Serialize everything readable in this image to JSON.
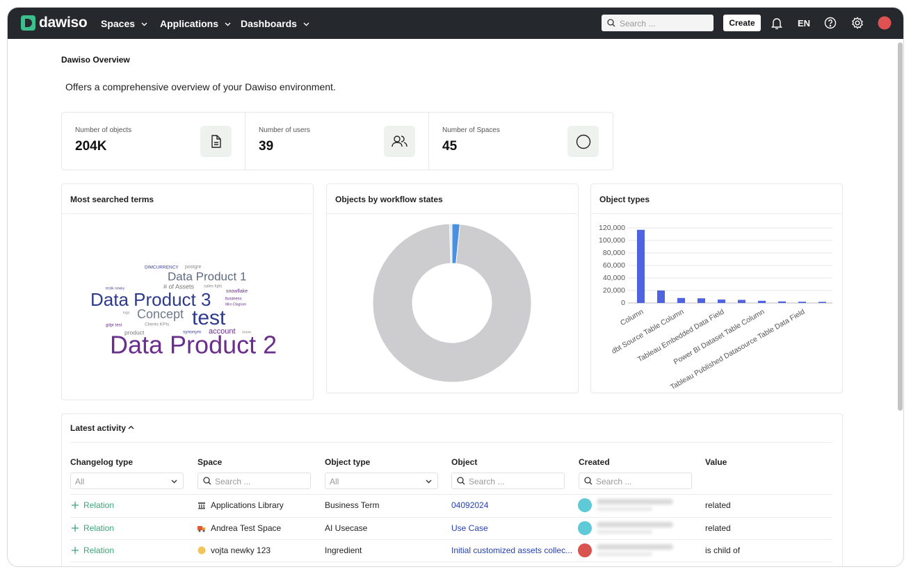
{
  "nav": {
    "brand": "dawiso",
    "menus": [
      "Spaces",
      "Applications",
      "Dashboards"
    ],
    "search_placeholder": "Search ...",
    "create_button": "Create",
    "language": "EN"
  },
  "page": {
    "title": "Dawiso Overview",
    "description": "Offers a comprehensive overview of your Dawiso environment."
  },
  "stats": [
    {
      "label": "Number of objects",
      "value": "204K"
    },
    {
      "label": "Number of users",
      "value": "39"
    },
    {
      "label": "Number of Spaces",
      "value": "45"
    }
  ],
  "word_cloud": {
    "title": "Most searched terms",
    "words": [
      "DIMCURRENCY",
      "postgre",
      "Data Product 1",
      "testik newky",
      "# of Assets",
      "sales kpis",
      "snowflake",
      "Data Product 3",
      "business",
      "Miro Diagram",
      "logo",
      "Concept",
      "test",
      "gdpr test",
      "Clients KPIs",
      "synonym",
      "account",
      "snow",
      "product",
      "Data Product 2"
    ]
  },
  "chart_data": [
    {
      "type": "doughnut",
      "title": "Objects by workflow states",
      "values": [
        1.6,
        97.9,
        0.5
      ],
      "colors": [
        "#4a90e2",
        "#cdcdd0",
        "#dde8f6"
      ]
    },
    {
      "type": "bar",
      "title": "Object types",
      "categories": [
        "Column",
        null,
        "dbt Source Table Column",
        null,
        "Tableau Embedded Data Field",
        null,
        "Power BI Dataset Table Column",
        null,
        "Tableau Published Datasource Table Data Field",
        null
      ],
      "values": [
        117000,
        20000,
        8000,
        7500,
        5500,
        5000,
        3500,
        2500,
        2000,
        1800
      ],
      "color": "#4f63e0",
      "ylim": [
        0,
        120000
      ],
      "yticks": [
        0,
        {
          "value": 20000,
          "label": "20,000"
        },
        {
          "value": 40000,
          "label": "40,000"
        },
        {
          "value": 60000,
          "label": "60,000"
        },
        {
          "value": 80000,
          "label": "80,000"
        },
        {
          "value": 100000,
          "label": "100,000"
        },
        {
          "value": 120000,
          "label": "120,000"
        }
      ],
      "grid": true
    }
  ],
  "activity": {
    "title": "Latest activity",
    "columns": [
      "Changelog type",
      "Space",
      "Object type",
      "Object",
      "Created",
      "Value"
    ],
    "filters": [
      "All",
      "Search ...",
      "All",
      "Search ...",
      "Search ..."
    ],
    "rows": [
      {
        "changelog_type": "Relation",
        "space": "Applications Library",
        "object_type": "Business Term",
        "object": "04092024",
        "value": "related"
      },
      {
        "changelog_type": "Relation",
        "space": "Andrea Test Space",
        "object_type": "AI Usecase",
        "object": "Use Case",
        "value": "related"
      },
      {
        "changelog_type": "Relation",
        "space": "vojta newky 123",
        "object_type": "Ingredient",
        "object": "Initial customized assets collec...",
        "value": "is child of"
      }
    ]
  }
}
